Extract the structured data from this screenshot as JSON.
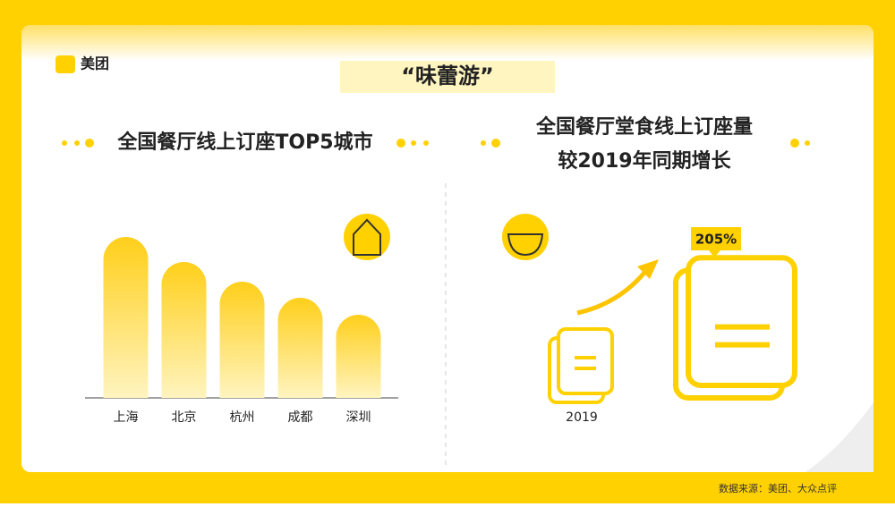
{
  "brand": "美团",
  "banner": "“味蕾游”",
  "source": "数据来源：美团、大众点评",
  "chart_data": [
    {
      "type": "bar",
      "title": "全国餐厅线上订座TOP5城市",
      "categories": [
        "上海",
        "北京",
        "杭州",
        "成都",
        "深圳"
      ],
      "values": [
        180,
        152,
        130,
        112,
        93
      ],
      "ylim": [
        0,
        200
      ],
      "color": "#ffd100"
    },
    {
      "type": "growth",
      "title": [
        "全国餐厅堂食线上订座量",
        "较2019年同期增长"
      ],
      "categories": [
        "2019"
      ],
      "values": [
        205
      ],
      "value_labels": [
        "205%"
      ],
      "color": "#ffd100"
    }
  ]
}
